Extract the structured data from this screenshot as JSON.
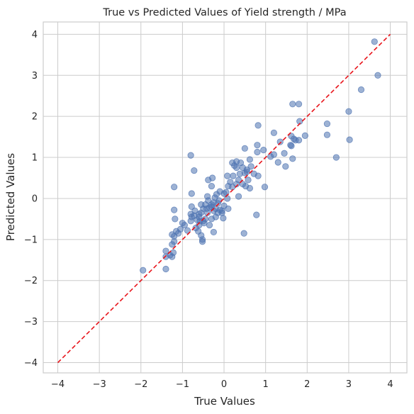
{
  "chart_data": {
    "type": "scatter",
    "title": "True vs Predicted Values of Yield strength / MPa",
    "xlabel": "True Values",
    "ylabel": "Predicted Values",
    "xlim": [
      -4.35,
      4.4
    ],
    "ylim": [
      -4.25,
      4.3
    ],
    "xticks": [
      -4,
      -3,
      -2,
      -1,
      0,
      1,
      2,
      3,
      4
    ],
    "yticks": [
      -4,
      -3,
      -2,
      -1,
      0,
      1,
      2,
      3,
      4
    ],
    "xtick_labels": [
      "−4",
      "−3",
      "−2",
      "−1",
      "0",
      "1",
      "2",
      "3",
      "4"
    ],
    "ytick_labels": [
      "−4",
      "−3",
      "−2",
      "−1",
      "0",
      "1",
      "2",
      "3",
      "4"
    ],
    "grid": true,
    "point_color": "#4c72b0",
    "reference_line": {
      "x": [
        -4,
        4
      ],
      "y": [
        -4,
        4
      ],
      "color": "#e8141b",
      "style": "dashed"
    },
    "points": [
      [
        3.62,
        3.82
      ],
      [
        3.7,
        3.0
      ],
      [
        3.3,
        2.65
      ],
      [
        3.0,
        2.12
      ],
      [
        3.02,
        1.43
      ],
      [
        2.7,
        1.0
      ],
      [
        2.48,
        1.82
      ],
      [
        2.48,
        1.55
      ],
      [
        1.65,
        2.3
      ],
      [
        1.8,
        2.3
      ],
      [
        1.82,
        1.88
      ],
      [
        1.95,
        1.53
      ],
      [
        1.62,
        1.52
      ],
      [
        1.68,
        1.45
      ],
      [
        1.72,
        1.42
      ],
      [
        1.8,
        1.42
      ],
      [
        1.6,
        1.3
      ],
      [
        1.62,
        1.28
      ],
      [
        1.65,
        0.97
      ],
      [
        1.48,
        0.78
      ],
      [
        1.45,
        1.1
      ],
      [
        1.35,
        1.38
      ],
      [
        1.3,
        0.88
      ],
      [
        1.2,
        1.07
      ],
      [
        1.12,
        1.02
      ],
      [
        1.2,
        1.6
      ],
      [
        0.82,
        1.78
      ],
      [
        0.8,
        1.3
      ],
      [
        0.8,
        1.13
      ],
      [
        0.95,
        1.18
      ],
      [
        0.98,
        0.28
      ],
      [
        0.82,
        0.55
      ],
      [
        0.78,
        -0.4
      ],
      [
        0.62,
        0.95
      ],
      [
        0.65,
        0.78
      ],
      [
        0.55,
        0.65
      ],
      [
        0.5,
        1.22
      ],
      [
        0.5,
        0.62
      ],
      [
        0.45,
        0.75
      ],
      [
        0.4,
        0.87
      ],
      [
        0.38,
        0.6
      ],
      [
        0.35,
        0.45
      ],
      [
        0.3,
        0.9
      ],
      [
        0.25,
        0.8
      ],
      [
        0.2,
        0.87
      ],
      [
        0.3,
        0.35
      ],
      [
        0.2,
        0.28
      ],
      [
        0.15,
        0.4
      ],
      [
        0.08,
        0.55
      ],
      [
        0.1,
        0.3
      ],
      [
        0.05,
        0.15
      ],
      [
        0.0,
        0.12
      ],
      [
        0.08,
        0.0
      ],
      [
        0.1,
        -0.25
      ],
      [
        0.0,
        -0.18
      ],
      [
        -0.05,
        -0.3
      ],
      [
        -0.02,
        -0.48
      ],
      [
        0.3,
        0.75
      ],
      [
        0.52,
        0.3
      ],
      [
        0.58,
        0.45
      ],
      [
        0.72,
        0.6
      ],
      [
        0.62,
        0.25
      ],
      [
        0.55,
        0.7
      ],
      [
        0.45,
        0.35
      ],
      [
        0.48,
        -0.85
      ],
      [
        0.22,
        0.55
      ],
      [
        0.35,
        0.05
      ],
      [
        -0.1,
        0.17
      ],
      [
        -0.12,
        -0.05
      ],
      [
        -0.18,
        0.1
      ],
      [
        -0.22,
        0.02
      ],
      [
        -0.25,
        -0.1
      ],
      [
        -0.3,
        -0.15
      ],
      [
        -0.3,
        0.3
      ],
      [
        -0.28,
        0.5
      ],
      [
        -0.38,
        0.45
      ],
      [
        -0.4,
        0.05
      ],
      [
        -0.35,
        -0.22
      ],
      [
        -0.4,
        -0.35
      ],
      [
        -0.45,
        -0.5
      ],
      [
        -0.5,
        -0.25
      ],
      [
        -0.5,
        -0.55
      ],
      [
        -0.55,
        -0.35
      ],
      [
        -0.6,
        -0.45
      ],
      [
        -0.6,
        -0.65
      ],
      [
        -0.62,
        -0.8
      ],
      [
        -0.55,
        -0.9
      ],
      [
        -0.52,
        -1.0
      ],
      [
        -0.52,
        -1.05
      ],
      [
        -0.48,
        -0.6
      ],
      [
        -0.45,
        -0.15
      ],
      [
        -0.35,
        -0.65
      ],
      [
        -0.3,
        -0.5
      ],
      [
        -0.25,
        -0.82
      ],
      [
        -0.2,
        -0.45
      ],
      [
        -0.2,
        -0.25
      ],
      [
        -0.15,
        -0.35
      ],
      [
        -0.1,
        -0.28
      ],
      [
        -0.05,
        -0.35
      ],
      [
        -0.25,
        -0.3
      ],
      [
        -0.3,
        -0.2
      ],
      [
        -0.38,
        -0.05
      ],
      [
        -0.42,
        -0.25
      ],
      [
        -0.15,
        -0.12
      ],
      [
        -0.7,
        -0.3
      ],
      [
        -0.78,
        -0.2
      ],
      [
        -0.78,
        -0.45
      ],
      [
        -0.8,
        -0.38
      ],
      [
        -0.8,
        -0.55
      ],
      [
        -0.88,
        -0.78
      ],
      [
        -0.95,
        -0.65
      ],
      [
        -1.0,
        -0.6
      ],
      [
        -1.05,
        -0.75
      ],
      [
        -1.1,
        -0.85
      ],
      [
        -0.78,
        0.12
      ],
      [
        -0.8,
        1.05
      ],
      [
        -0.72,
        0.68
      ],
      [
        -1.2,
        0.28
      ],
      [
        -1.2,
        -0.28
      ],
      [
        -1.18,
        -0.5
      ],
      [
        -1.15,
        -0.8
      ],
      [
        -1.2,
        -0.92
      ],
      [
        -1.25,
        -0.88
      ],
      [
        -1.2,
        -1.05
      ],
      [
        -1.25,
        -1.12
      ],
      [
        -1.22,
        -1.32
      ],
      [
        -1.25,
        -1.42
      ],
      [
        -1.3,
        -1.38
      ],
      [
        -1.4,
        -1.28
      ],
      [
        -1.4,
        -1.42
      ],
      [
        -1.4,
        -1.72
      ],
      [
        -1.95,
        -1.75
      ],
      [
        -0.72,
        -0.42
      ],
      [
        -0.68,
        -0.72
      ],
      [
        -0.6,
        -0.38
      ],
      [
        -0.55,
        -0.15
      ],
      [
        -0.58,
        -0.55
      ],
      [
        -0.65,
        -0.52
      ]
    ]
  }
}
